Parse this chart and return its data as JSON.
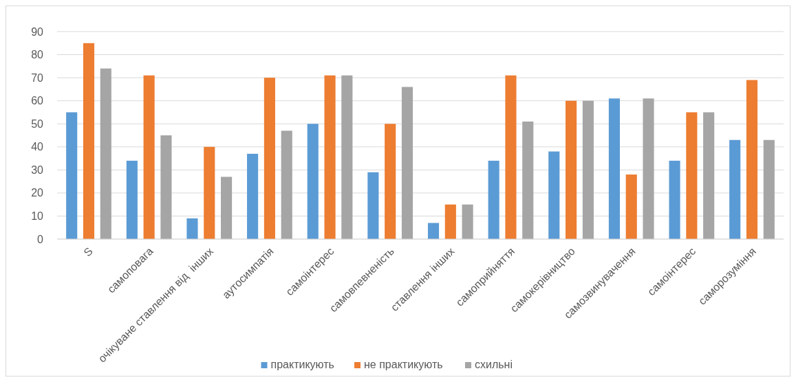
{
  "chart_data": {
    "type": "bar",
    "categories": [
      "S",
      "самоповага",
      "очікуване ставлення від  інших",
      "аутосимпатія",
      "самоінтерес",
      "самовпевненість",
      "ставлення інших",
      "самоприйняття",
      "самокерівництво",
      "самозвинувачення",
      "самоінтерес",
      "саморозуміння"
    ],
    "series": [
      {
        "name": "практикують",
        "color": "#5b9bd5",
        "values": [
          55,
          34,
          9,
          37,
          50,
          29,
          7,
          34,
          38,
          61,
          34,
          43
        ]
      },
      {
        "name": "не практикують",
        "color": "#ed7d31",
        "values": [
          85,
          71,
          40,
          70,
          71,
          50,
          15,
          71,
          60,
          28,
          55,
          69
        ]
      },
      {
        "name": "схильні",
        "color": "#a5a5a5",
        "values": [
          74,
          45,
          27,
          47,
          71,
          66,
          15,
          51,
          60,
          61,
          55,
          43
        ]
      }
    ],
    "ylim": [
      0,
      90
    ],
    "yticks": [
      0,
      10,
      20,
      30,
      40,
      50,
      60,
      70,
      80,
      90
    ],
    "grid": "y",
    "legend": "bottom"
  }
}
